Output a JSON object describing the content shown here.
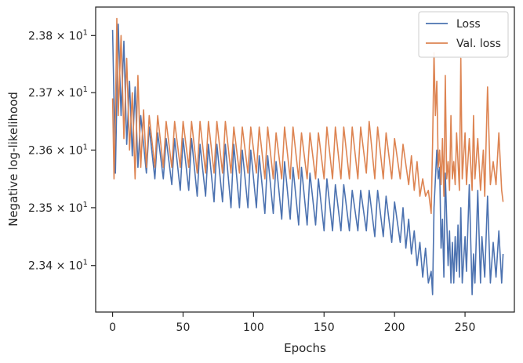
{
  "chart_data": {
    "type": "line",
    "title": "",
    "xlabel": "Epochs",
    "ylabel": "Negative log-likelihood",
    "xlim": [
      -12,
      285
    ],
    "ylim": [
      23.32,
      23.85
    ],
    "x_ticks": [
      0,
      50,
      100,
      150,
      200,
      250
    ],
    "y_ticks": [
      {
        "value": 23.4,
        "mantissa": "2.34",
        "exponent": "1"
      },
      {
        "value": 23.5,
        "mantissa": "2.35",
        "exponent": "1"
      },
      {
        "value": 23.6,
        "mantissa": "2.36",
        "exponent": "1"
      },
      {
        "value": 23.7,
        "mantissa": "2.37",
        "exponent": "1"
      },
      {
        "value": 23.8,
        "mantissa": "2.38",
        "exponent": "1"
      }
    ],
    "y_scale": "log",
    "grid": false,
    "legend_placement": "top-right",
    "series": [
      {
        "name": "Loss",
        "color": "#4c72b0",
        "points": [
          [
            0,
            23.81
          ],
          [
            2,
            23.56
          ],
          [
            4,
            23.82
          ],
          [
            6,
            23.66
          ],
          [
            8,
            23.79
          ],
          [
            10,
            23.61
          ],
          [
            12,
            23.72
          ],
          [
            14,
            23.59
          ],
          [
            16,
            23.71
          ],
          [
            18,
            23.57
          ],
          [
            20,
            23.66
          ],
          [
            24,
            23.56
          ],
          [
            26,
            23.64
          ],
          [
            30,
            23.55
          ],
          [
            32,
            23.63
          ],
          [
            36,
            23.55
          ],
          [
            38,
            23.62
          ],
          [
            42,
            23.54
          ],
          [
            44,
            23.62
          ],
          [
            48,
            23.53
          ],
          [
            50,
            23.62
          ],
          [
            54,
            23.53
          ],
          [
            56,
            23.62
          ],
          [
            60,
            23.52
          ],
          [
            62,
            23.61
          ],
          [
            66,
            23.52
          ],
          [
            68,
            23.61
          ],
          [
            72,
            23.51
          ],
          [
            74,
            23.61
          ],
          [
            78,
            23.51
          ],
          [
            80,
            23.61
          ],
          [
            84,
            23.5
          ],
          [
            86,
            23.61
          ],
          [
            90,
            23.5
          ],
          [
            92,
            23.6
          ],
          [
            96,
            23.5
          ],
          [
            98,
            23.6
          ],
          [
            102,
            23.5
          ],
          [
            104,
            23.59
          ],
          [
            108,
            23.49
          ],
          [
            110,
            23.59
          ],
          [
            114,
            23.49
          ],
          [
            116,
            23.58
          ],
          [
            120,
            23.48
          ],
          [
            122,
            23.58
          ],
          [
            126,
            23.48
          ],
          [
            128,
            23.57
          ],
          [
            132,
            23.47
          ],
          [
            134,
            23.57
          ],
          [
            138,
            23.47
          ],
          [
            140,
            23.56
          ],
          [
            144,
            23.47
          ],
          [
            146,
            23.55
          ],
          [
            150,
            23.46
          ],
          [
            152,
            23.55
          ],
          [
            156,
            23.46
          ],
          [
            158,
            23.54
          ],
          [
            162,
            23.46
          ],
          [
            164,
            23.54
          ],
          [
            168,
            23.46
          ],
          [
            170,
            23.53
          ],
          [
            174,
            23.46
          ],
          [
            176,
            23.53
          ],
          [
            180,
            23.46
          ],
          [
            182,
            23.53
          ],
          [
            186,
            23.45
          ],
          [
            188,
            23.53
          ],
          [
            192,
            23.45
          ],
          [
            194,
            23.52
          ],
          [
            198,
            23.44
          ],
          [
            200,
            23.51
          ],
          [
            204,
            23.44
          ],
          [
            206,
            23.5
          ],
          [
            208,
            23.43
          ],
          [
            210,
            23.48
          ],
          [
            212,
            23.42
          ],
          [
            214,
            23.46
          ],
          [
            216,
            23.4
          ],
          [
            218,
            23.44
          ],
          [
            220,
            23.38
          ],
          [
            222,
            23.43
          ],
          [
            224,
            23.37
          ],
          [
            226,
            23.39
          ],
          [
            227,
            23.35
          ],
          [
            228,
            23.5
          ],
          [
            230,
            23.6
          ],
          [
            231,
            23.55
          ],
          [
            232,
            23.57
          ],
          [
            233,
            23.43
          ],
          [
            234,
            23.48
          ],
          [
            235,
            23.38
          ],
          [
            236,
            23.56
          ],
          [
            238,
            23.4
          ],
          [
            239,
            23.46
          ],
          [
            240,
            23.37
          ],
          [
            241,
            23.44
          ],
          [
            242,
            23.37
          ],
          [
            243,
            23.45
          ],
          [
            244,
            23.39
          ],
          [
            245,
            23.47
          ],
          [
            246,
            23.38
          ],
          [
            247,
            23.5
          ],
          [
            248,
            23.37
          ],
          [
            250,
            23.45
          ],
          [
            251,
            23.39
          ],
          [
            253,
            23.54
          ],
          [
            255,
            23.35
          ],
          [
            256,
            23.42
          ],
          [
            257,
            23.37
          ],
          [
            259,
            23.53
          ],
          [
            261,
            23.37
          ],
          [
            262,
            23.45
          ],
          [
            264,
            23.38
          ],
          [
            266,
            23.52
          ],
          [
            268,
            23.37
          ],
          [
            270,
            23.44
          ],
          [
            272,
            23.38
          ],
          [
            274,
            23.46
          ],
          [
            276,
            23.37
          ],
          [
            277,
            23.42
          ]
        ]
      },
      {
        "name": "Val. loss",
        "color": "#dd8452",
        "points": [
          [
            0,
            23.69
          ],
          [
            1,
            23.55
          ],
          [
            2,
            23.66
          ],
          [
            3,
            23.83
          ],
          [
            4,
            23.66
          ],
          [
            6,
            23.8
          ],
          [
            8,
            23.62
          ],
          [
            10,
            23.76
          ],
          [
            12,
            23.6
          ],
          [
            14,
            23.7
          ],
          [
            16,
            23.55
          ],
          [
            18,
            23.73
          ],
          [
            20,
            23.57
          ],
          [
            22,
            23.67
          ],
          [
            24,
            23.57
          ],
          [
            26,
            23.66
          ],
          [
            30,
            23.57
          ],
          [
            32,
            23.66
          ],
          [
            36,
            23.57
          ],
          [
            38,
            23.65
          ],
          [
            42,
            23.57
          ],
          [
            44,
            23.65
          ],
          [
            48,
            23.57
          ],
          [
            50,
            23.65
          ],
          [
            54,
            23.57
          ],
          [
            56,
            23.65
          ],
          [
            60,
            23.56
          ],
          [
            62,
            23.65
          ],
          [
            66,
            23.56
          ],
          [
            68,
            23.65
          ],
          [
            72,
            23.56
          ],
          [
            74,
            23.65
          ],
          [
            78,
            23.56
          ],
          [
            80,
            23.65
          ],
          [
            84,
            23.56
          ],
          [
            86,
            23.64
          ],
          [
            90,
            23.56
          ],
          [
            92,
            23.64
          ],
          [
            96,
            23.56
          ],
          [
            98,
            23.64
          ],
          [
            102,
            23.56
          ],
          [
            104,
            23.64
          ],
          [
            108,
            23.55
          ],
          [
            110,
            23.64
          ],
          [
            114,
            23.55
          ],
          [
            116,
            23.63
          ],
          [
            120,
            23.55
          ],
          [
            122,
            23.64
          ],
          [
            126,
            23.55
          ],
          [
            128,
            23.64
          ],
          [
            132,
            23.55
          ],
          [
            134,
            23.63
          ],
          [
            138,
            23.55
          ],
          [
            140,
            23.63
          ],
          [
            144,
            23.55
          ],
          [
            146,
            23.63
          ],
          [
            150,
            23.55
          ],
          [
            152,
            23.64
          ],
          [
            156,
            23.55
          ],
          [
            158,
            23.64
          ],
          [
            162,
            23.55
          ],
          [
            164,
            23.64
          ],
          [
            168,
            23.55
          ],
          [
            170,
            23.64
          ],
          [
            174,
            23.55
          ],
          [
            176,
            23.64
          ],
          [
            180,
            23.56
          ],
          [
            182,
            23.65
          ],
          [
            186,
            23.55
          ],
          [
            188,
            23.64
          ],
          [
            192,
            23.55
          ],
          [
            194,
            23.63
          ],
          [
            198,
            23.55
          ],
          [
            200,
            23.62
          ],
          [
            204,
            23.55
          ],
          [
            206,
            23.61
          ],
          [
            210,
            23.54
          ],
          [
            212,
            23.59
          ],
          [
            214,
            23.53
          ],
          [
            216,
            23.58
          ],
          [
            218,
            23.52
          ],
          [
            220,
            23.55
          ],
          [
            222,
            23.52
          ],
          [
            224,
            23.53
          ],
          [
            226,
            23.49
          ],
          [
            227,
            23.61
          ],
          [
            228,
            23.77
          ],
          [
            229,
            23.66
          ],
          [
            230,
            23.72
          ],
          [
            231,
            23.57
          ],
          [
            232,
            23.6
          ],
          [
            233,
            23.54
          ],
          [
            234,
            23.62
          ],
          [
            235,
            23.52
          ],
          [
            236,
            23.73
          ],
          [
            237,
            23.55
          ],
          [
            238,
            23.58
          ],
          [
            239,
            23.53
          ],
          [
            240,
            23.66
          ],
          [
            241,
            23.55
          ],
          [
            242,
            23.58
          ],
          [
            243,
            23.54
          ],
          [
            244,
            23.63
          ],
          [
            246,
            23.53
          ],
          [
            247,
            23.76
          ],
          [
            248,
            23.55
          ],
          [
            250,
            23.63
          ],
          [
            251,
            23.54
          ],
          [
            253,
            23.62
          ],
          [
            255,
            23.53
          ],
          [
            256,
            23.66
          ],
          [
            257,
            23.55
          ],
          [
            259,
            23.62
          ],
          [
            261,
            23.53
          ],
          [
            263,
            23.6
          ],
          [
            264,
            23.52
          ],
          [
            266,
            23.71
          ],
          [
            268,
            23.54
          ],
          [
            270,
            23.58
          ],
          [
            272,
            23.54
          ],
          [
            274,
            23.63
          ],
          [
            276,
            23.53
          ],
          [
            277,
            23.51
          ]
        ]
      }
    ]
  }
}
